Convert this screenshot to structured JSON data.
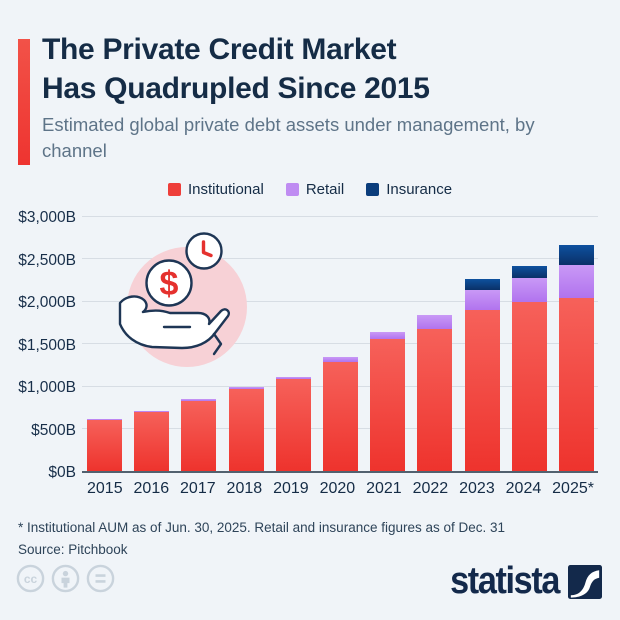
{
  "header": {
    "title_line1": "The Private Credit Market",
    "title_line2": "Has Quadrupled Since 2015",
    "subtitle": "Estimated global private debt assets under management, by channel"
  },
  "chart_data": {
    "type": "bar",
    "stacked": true,
    "title": "The Private Credit Market Has Quadrupled Since 2015",
    "subtitle": "Estimated global private debt assets under management, by channel",
    "unit": "billion U.S. dollars",
    "categories": [
      "2015",
      "2016",
      "2017",
      "2018",
      "2019",
      "2020",
      "2021",
      "2022",
      "2023",
      "2024",
      "2025*"
    ],
    "series": [
      {
        "name": "Institutional",
        "color": "#ee3e3a",
        "gradient": [
          "#f6615a",
          "#ee332d"
        ],
        "values": [
          600,
          690,
          820,
          960,
          1080,
          1285,
          1550,
          1675,
          1890,
          1985,
          2040
        ]
      },
      {
        "name": "Retail",
        "color": "#bf8cf2",
        "gradient": [
          "#c999f6",
          "#b173ee"
        ],
        "values": [
          10,
          15,
          30,
          25,
          30,
          55,
          90,
          160,
          240,
          285,
          390
        ]
      },
      {
        "name": "Insurance",
        "color": "#0b3d7c",
        "gradient": [
          "#0e519f",
          "#0a3068"
        ],
        "values": [
          0,
          0,
          0,
          0,
          0,
          0,
          0,
          0,
          130,
          145,
          225
        ]
      }
    ],
    "ylim": [
      0,
      3000
    ],
    "yticks": [
      {
        "value": 0,
        "label": "$0B"
      },
      {
        "value": 500,
        "label": "$500B"
      },
      {
        "value": 1000,
        "label": "$1,000B"
      },
      {
        "value": 1500,
        "label": "$1,500B"
      },
      {
        "value": 2000,
        "label": "$2,000B"
      },
      {
        "value": 2500,
        "label": "$2,500B"
      },
      {
        "value": 3000,
        "label": "$3,000B"
      }
    ],
    "grid": true,
    "legend_position": "top-center"
  },
  "footnote": {
    "note": "* Institutional AUM as of Jun. 30, 2025. Retail and insurance figures as of Dec. 31",
    "source": "Source: Pitchbook"
  },
  "branding": {
    "logo_text": "statista"
  },
  "footer_icons": [
    "creative-commons-icon",
    "attribution-icon",
    "no-derivatives-icon"
  ],
  "colors": {
    "background": "#f0f4f8",
    "title": "#152c46",
    "subtitle": "#5e7488",
    "accent_red": "#ee3e3a",
    "institutional": "#ee3e3a",
    "retail": "#bf8cf2",
    "insurance": "#0b3d7c",
    "gridline": "#d7dde4",
    "axis_line": "#52616f",
    "footnote": "#2e4459",
    "license_icon": "#c9d3dc",
    "logo_navy": "#13294b",
    "illustration_pink": "#f7d1d6",
    "illustration_outline": "#1e3655",
    "illustration_red": "#e5312e"
  }
}
